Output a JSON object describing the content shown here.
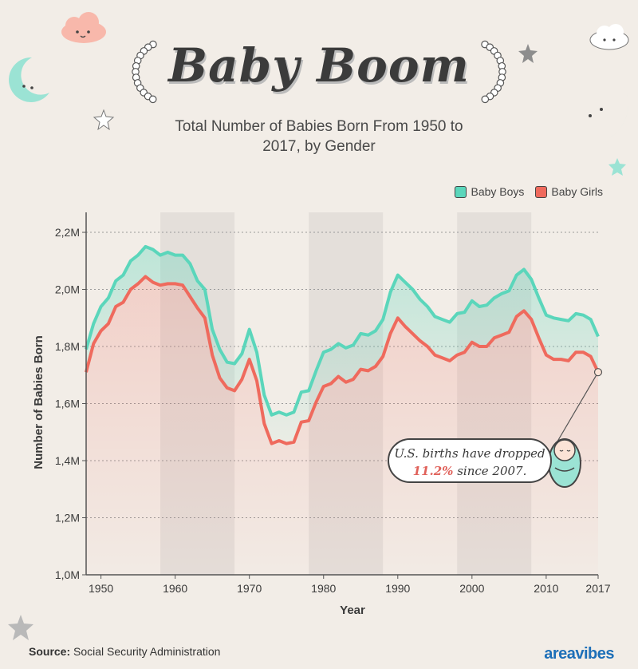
{
  "header": {
    "title": "Baby Boom",
    "subtitle": "Total Number of Babies Born From 1950 to 2017, by Gender"
  },
  "legend": {
    "boys": "Baby Boys",
    "girls": "Baby Girls"
  },
  "callout": {
    "line1": "U.S. births have dropped",
    "pct": "11.2%",
    "line2": " since 2007."
  },
  "footer": {
    "source_label": "Source:",
    "source_text": "Social Security Administration",
    "brand": "areavibes"
  },
  "colors": {
    "boys": "#5bd6bb",
    "girls": "#ef6a5d",
    "accent": "#e0615a"
  },
  "chart_data": {
    "type": "area",
    "xlabel": "Year",
    "ylabel": "Number of Babies Born",
    "xlim": [
      1948,
      2017
    ],
    "ylim": [
      1.0,
      2.27
    ],
    "y_ticks": [
      1.0,
      1.2,
      1.4,
      1.6,
      1.8,
      2.0,
      2.2
    ],
    "y_tick_labels": [
      "1,0M",
      "1,2M",
      "1,4M",
      "1,6M",
      "1,8M",
      "2,0M",
      "2,2M"
    ],
    "x_ticks": [
      1950,
      1960,
      1970,
      1980,
      1990,
      2000,
      2010,
      2017
    ],
    "x_tick_labels": [
      "1950",
      "1960",
      "1970",
      "1980",
      "1990",
      "2000",
      "2010",
      "2017"
    ],
    "grid": true,
    "legend_position": "top-right",
    "series": [
      {
        "name": "Baby Boys",
        "points": [
          [
            1948,
            1.79
          ],
          [
            1949,
            1.88
          ],
          [
            1950,
            1.94
          ],
          [
            1951,
            1.97
          ],
          [
            1952,
            2.03
          ],
          [
            1953,
            2.05
          ],
          [
            1954,
            2.1
          ],
          [
            1955,
            2.12
          ],
          [
            1956,
            2.15
          ],
          [
            1957,
            2.14
          ],
          [
            1958,
            2.12
          ],
          [
            1959,
            2.13
          ],
          [
            1960,
            2.12
          ],
          [
            1961,
            2.12
          ],
          [
            1962,
            2.09
          ],
          [
            1963,
            2.03
          ],
          [
            1964,
            2.0
          ],
          [
            1965,
            1.86
          ],
          [
            1966,
            1.79
          ],
          [
            1967,
            1.745
          ],
          [
            1968,
            1.74
          ],
          [
            1969,
            1.775
          ],
          [
            1970,
            1.86
          ],
          [
            1971,
            1.78
          ],
          [
            1972,
            1.63
          ],
          [
            1973,
            1.56
          ],
          [
            1974,
            1.57
          ],
          [
            1975,
            1.56
          ],
          [
            1976,
            1.57
          ],
          [
            1977,
            1.64
          ],
          [
            1978,
            1.645
          ],
          [
            1979,
            1.715
          ],
          [
            1980,
            1.78
          ],
          [
            1981,
            1.79
          ],
          [
            1982,
            1.81
          ],
          [
            1983,
            1.795
          ],
          [
            1984,
            1.805
          ],
          [
            1985,
            1.845
          ],
          [
            1986,
            1.84
          ],
          [
            1987,
            1.855
          ],
          [
            1988,
            1.895
          ],
          [
            1989,
            1.99
          ],
          [
            1990,
            2.05
          ],
          [
            1991,
            2.025
          ],
          [
            1992,
            2.0
          ],
          [
            1993,
            1.965
          ],
          [
            1994,
            1.94
          ],
          [
            1995,
            1.905
          ],
          [
            1996,
            1.895
          ],
          [
            1997,
            1.885
          ],
          [
            1998,
            1.915
          ],
          [
            1999,
            1.92
          ],
          [
            2000,
            1.96
          ],
          [
            2001,
            1.94
          ],
          [
            2002,
            1.945
          ],
          [
            2003,
            1.97
          ],
          [
            2004,
            1.985
          ],
          [
            2005,
            1.995
          ],
          [
            2006,
            2.05
          ],
          [
            2007,
            2.07
          ],
          [
            2008,
            2.035
          ],
          [
            2009,
            1.97
          ],
          [
            2010,
            1.91
          ],
          [
            2011,
            1.9
          ],
          [
            2012,
            1.895
          ],
          [
            2013,
            1.89
          ],
          [
            2014,
            1.915
          ],
          [
            2015,
            1.91
          ],
          [
            2016,
            1.895
          ],
          [
            2017,
            1.835
          ]
        ]
      },
      {
        "name": "Baby Girls",
        "points": [
          [
            1948,
            1.71
          ],
          [
            1949,
            1.81
          ],
          [
            1950,
            1.855
          ],
          [
            1951,
            1.88
          ],
          [
            1952,
            1.94
          ],
          [
            1953,
            1.955
          ],
          [
            1954,
            2.0
          ],
          [
            1955,
            2.02
          ],
          [
            1956,
            2.045
          ],
          [
            1957,
            2.025
          ],
          [
            1958,
            2.015
          ],
          [
            1959,
            2.02
          ],
          [
            1960,
            2.02
          ],
          [
            1961,
            2.015
          ],
          [
            1962,
            1.975
          ],
          [
            1963,
            1.935
          ],
          [
            1964,
            1.9
          ],
          [
            1965,
            1.77
          ],
          [
            1966,
            1.69
          ],
          [
            1967,
            1.655
          ],
          [
            1968,
            1.645
          ],
          [
            1969,
            1.685
          ],
          [
            1970,
            1.755
          ],
          [
            1971,
            1.68
          ],
          [
            1972,
            1.53
          ],
          [
            1973,
            1.46
          ],
          [
            1974,
            1.47
          ],
          [
            1975,
            1.46
          ],
          [
            1976,
            1.465
          ],
          [
            1977,
            1.535
          ],
          [
            1978,
            1.54
          ],
          [
            1979,
            1.605
          ],
          [
            1980,
            1.66
          ],
          [
            1981,
            1.67
          ],
          [
            1982,
            1.695
          ],
          [
            1983,
            1.675
          ],
          [
            1984,
            1.685
          ],
          [
            1985,
            1.72
          ],
          [
            1986,
            1.715
          ],
          [
            1987,
            1.73
          ],
          [
            1988,
            1.765
          ],
          [
            1989,
            1.845
          ],
          [
            1990,
            1.9
          ],
          [
            1991,
            1.87
          ],
          [
            1992,
            1.845
          ],
          [
            1993,
            1.82
          ],
          [
            1994,
            1.8
          ],
          [
            1995,
            1.77
          ],
          [
            1996,
            1.76
          ],
          [
            1997,
            1.75
          ],
          [
            1998,
            1.77
          ],
          [
            1999,
            1.78
          ],
          [
            2000,
            1.815
          ],
          [
            2001,
            1.8
          ],
          [
            2002,
            1.8
          ],
          [
            2003,
            1.83
          ],
          [
            2004,
            1.84
          ],
          [
            2005,
            1.85
          ],
          [
            2006,
            1.905
          ],
          [
            2007,
            1.925
          ],
          [
            2008,
            1.895
          ],
          [
            2009,
            1.83
          ],
          [
            2010,
            1.77
          ],
          [
            2011,
            1.755
          ],
          [
            2012,
            1.755
          ],
          [
            2013,
            1.75
          ],
          [
            2014,
            1.78
          ],
          [
            2015,
            1.78
          ],
          [
            2016,
            1.765
          ],
          [
            2017,
            1.71
          ]
        ]
      }
    ]
  }
}
